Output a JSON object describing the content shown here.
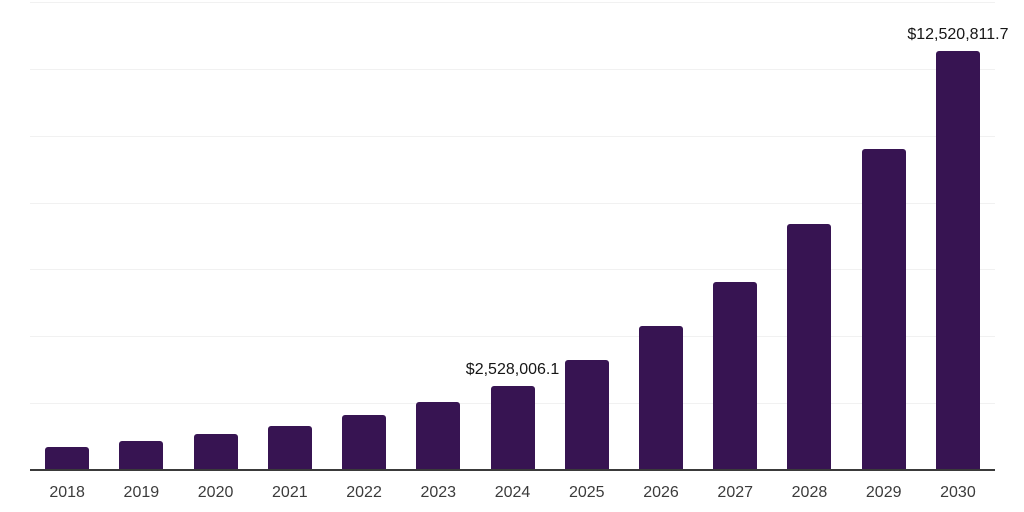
{
  "chart_data": {
    "type": "bar",
    "title": "",
    "xlabel": "",
    "ylabel": "",
    "categories": [
      "2018",
      "2019",
      "2020",
      "2021",
      "2022",
      "2023",
      "2024",
      "2025",
      "2026",
      "2027",
      "2028",
      "2029",
      "2030"
    ],
    "values": [
      690000,
      856700,
      1063700,
      1320700,
      1639900,
      2036100,
      2528006.1,
      3301300,
      4311000,
      5629300,
      7350700,
      9598500,
      12520811.7
    ],
    "data_labels": [
      "",
      "",
      "",
      "",
      "",
      "",
      "$2,528,006.1",
      "",
      "",
      "",
      "",
      "",
      "$12,520,811.7"
    ],
    "ylim": [
      0,
      14000000
    ],
    "gridline_interval": 2000000,
    "grid": "horizontal-only",
    "legend": "none",
    "colors": {
      "bar": "#371452",
      "axis": "#3a3a3a",
      "gridline": "#f1f1f1",
      "data_label": "#161616",
      "tick_label": "#3b3b3b",
      "background": "#ffffff"
    }
  }
}
